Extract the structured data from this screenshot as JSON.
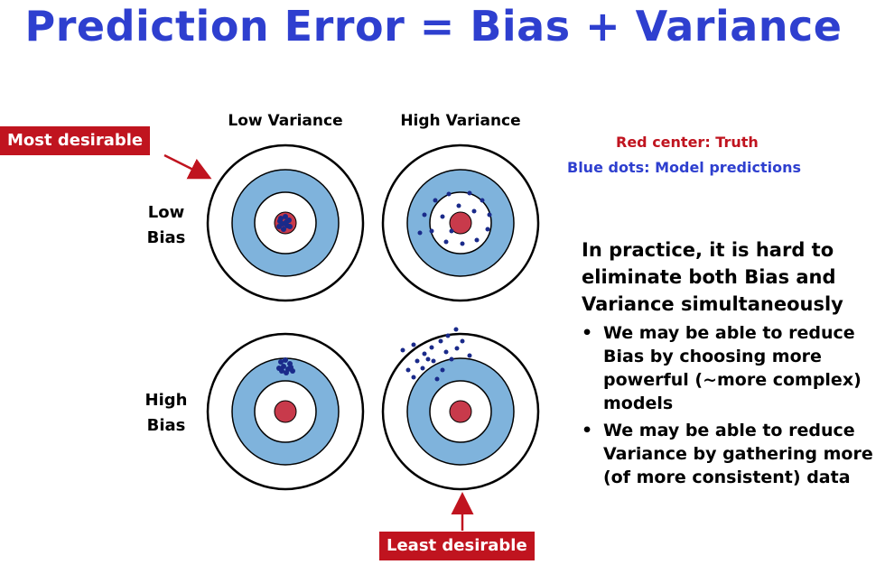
{
  "title": "Prediction Error = Bias + Variance",
  "columns": [
    "Low Variance",
    "High Variance"
  ],
  "rows": [
    {
      "line1": "Low",
      "line2": "Bias"
    },
    {
      "line1": "High",
      "line2": "Bias"
    }
  ],
  "tags": {
    "most": "Most desirable",
    "least": "Least desirable"
  },
  "legend": {
    "red": "Red center: Truth",
    "blue": "Blue dots: Model predictions",
    "red_color": "#c0141f",
    "blue_color": "#2e3fcf"
  },
  "practice": {
    "heading": "In practice, it is hard to eliminate both Bias and Variance simultaneously",
    "bullets": [
      "We may be able to reduce Bias by choosing more powerful (~more complex) models",
      "We may be able to reduce Variance by gathering more (of more consistent) data"
    ],
    "bullet_symbol": "•"
  },
  "colors": {
    "title": "#2e3fcf",
    "ring_blue": "#7fb3dc",
    "bullseye_red": "#c83a4b",
    "dot": "#1a2a8a",
    "tag_bg": "#c0141f"
  }
}
